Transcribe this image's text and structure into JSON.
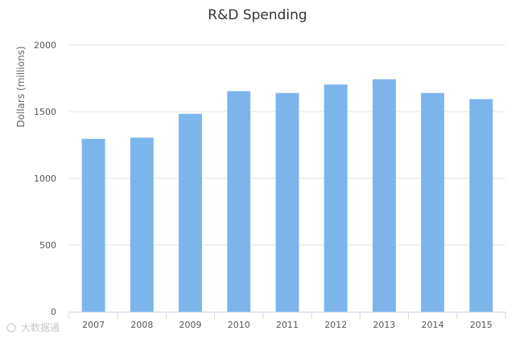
{
  "chart_data": {
    "type": "bar",
    "title": "R&D Spending",
    "xlabel": "",
    "ylabel": "Dollars (millions)",
    "categories": [
      "2007",
      "2008",
      "2009",
      "2010",
      "2011",
      "2012",
      "2013",
      "2014",
      "2015"
    ],
    "values": [
      1296,
      1305,
      1484,
      1654,
      1640,
      1704,
      1743,
      1640,
      1594
    ],
    "ylim": [
      0,
      2000
    ],
    "yticks": [
      0,
      500,
      1000,
      1500,
      2000
    ],
    "grid": true,
    "legend": "none",
    "bar_color": "#7cb5ec",
    "grid_color": "#e6e6e6"
  },
  "watermark": {
    "text": "大数据通"
  }
}
